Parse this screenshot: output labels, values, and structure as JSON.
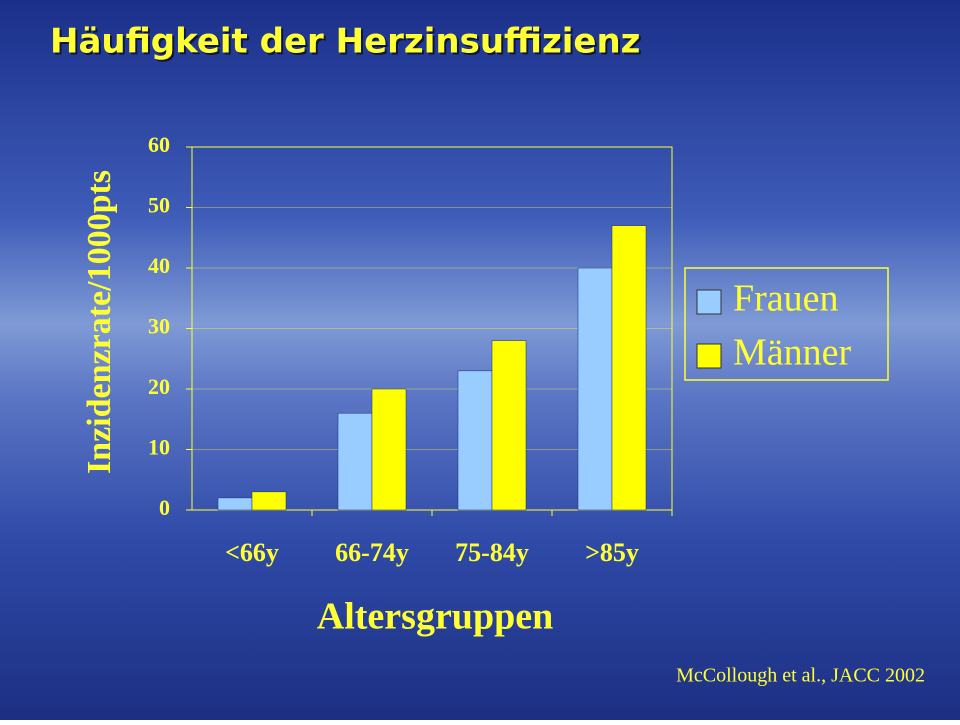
{
  "chart_data": {
    "type": "bar",
    "title": "Häufigkeit der Herzinsuffizienz",
    "y_label": "Inzidenzrate/1000pts",
    "x_label": "Altersgruppen",
    "source": "McCollough et al., JACC 2002",
    "categories": [
      "<66y",
      "66-74y",
      "75-84y",
      ">85y"
    ],
    "series": [
      {
        "name": "Frauen",
        "color": "#99ccff",
        "values": [
          2,
          16,
          23,
          40
        ]
      },
      {
        "name": "Männer",
        "color": "#ffff00",
        "values": [
          3,
          20,
          28,
          47
        ]
      }
    ],
    "ylim": [
      0,
      60
    ],
    "yticks": [
      0,
      10,
      20,
      30,
      40,
      50,
      60
    ],
    "grid": true,
    "legend": "right"
  }
}
